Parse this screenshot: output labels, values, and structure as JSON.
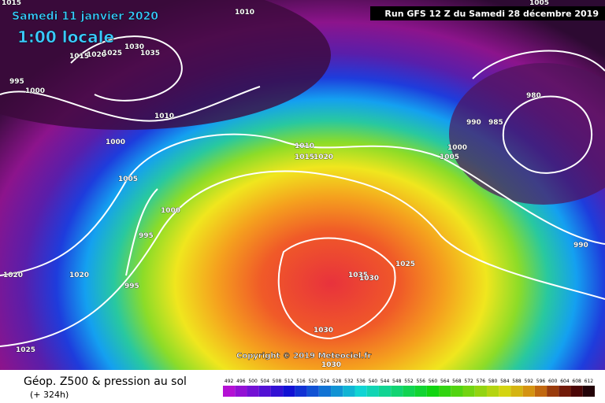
{
  "header": {
    "date": "Samedi 11 janvier 2020",
    "time": "1:00 locale",
    "run": "Run GFS 12 Z du Samedi 28 décembre 2019"
  },
  "copyright": "Copyright © 2019 Meteociel.fr",
  "isobar_labels": [
    "1015",
    "1010",
    "1030",
    "1035",
    "1025",
    "1020",
    "1015",
    "995",
    "1000",
    "1010",
    "1000",
    "1005",
    "1000",
    "995",
    "995",
    "1020",
    "1020",
    "1025",
    "1010",
    "1015",
    "1020",
    "990",
    "985",
    "980",
    "1000",
    "1005",
    "1005",
    "990",
    "1025",
    "1035",
    "1030",
    "1030",
    "1030"
  ],
  "footer": {
    "title": "Géop. Z500 & pression au sol",
    "lead": "(+ 324h)"
  },
  "legend": {
    "values": [
      492,
      496,
      500,
      504,
      508,
      512,
      516,
      520,
      524,
      528,
      532,
      536,
      540,
      544,
      548,
      552,
      556,
      560,
      564,
      568,
      572,
      576,
      580,
      584,
      588,
      592,
      596,
      600,
      604,
      608,
      612
    ]
  }
}
